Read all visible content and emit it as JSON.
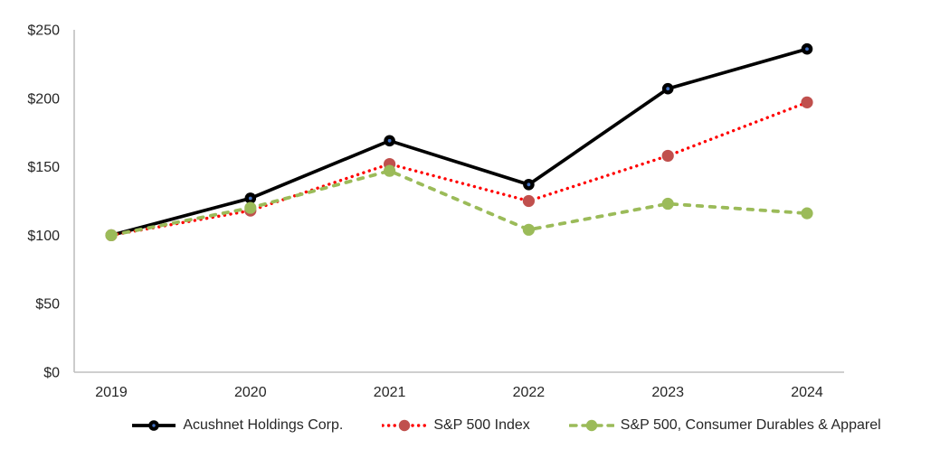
{
  "chart_data": {
    "type": "line",
    "x_categories": [
      "2019",
      "2020",
      "2021",
      "2022",
      "2023",
      "2024"
    ],
    "series": [
      {
        "name": "Acushnet Holdings Corp.",
        "values": [
          100,
          127,
          169,
          137,
          207,
          236
        ],
        "line_color": "#000000",
        "line_style": "solid",
        "marker_fill": "#000000",
        "marker_center": "#4472C4"
      },
      {
        "name": "S&P 500 Index",
        "values": [
          100,
          118,
          152,
          125,
          158,
          197
        ],
        "line_color": "#FF0000",
        "line_style": "dotted",
        "marker_fill": "#C0504D"
      },
      {
        "name": "S&P 500, Consumer Durables & Apparel",
        "values": [
          100,
          120,
          147,
          104,
          123,
          116
        ],
        "line_color": "#9BBB59",
        "line_style": "dashed",
        "marker_fill": "#9BBB59"
      }
    ],
    "title": "",
    "xlabel": "",
    "ylabel": "",
    "ylim": [
      0,
      250
    ],
    "ytick_step": 50,
    "ytick_labels": [
      "$0",
      "$50",
      "$100",
      "$150",
      "$200",
      "$250"
    ],
    "grid": false,
    "legend_position": "bottom",
    "axis_color": "#BFBFBF",
    "label_color": "#262626"
  }
}
